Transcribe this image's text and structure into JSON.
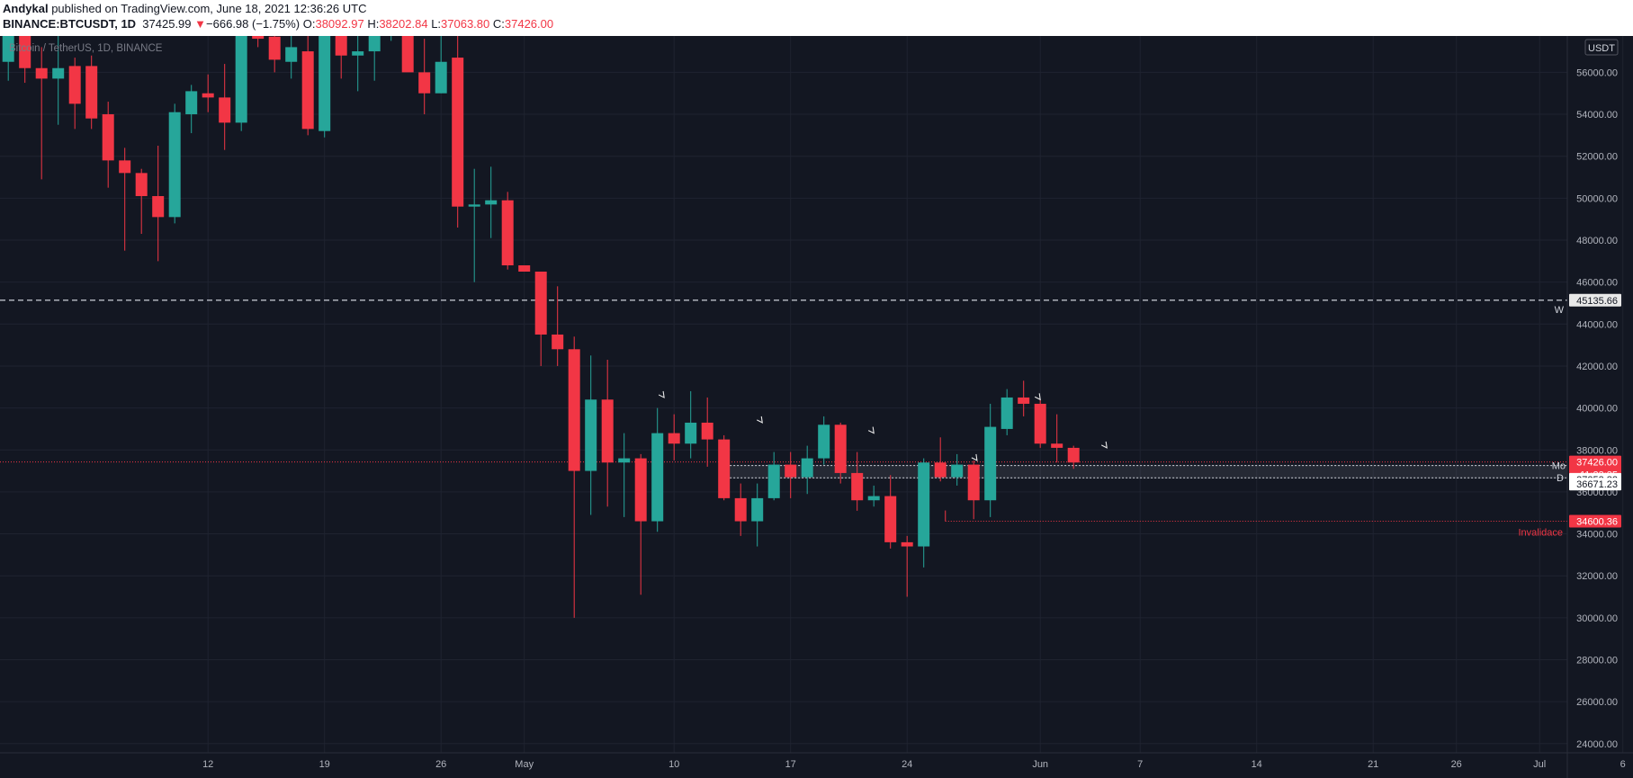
{
  "header": {
    "author": "Andykal",
    "published": " published on TradingView.com, June 18, 2021 12:36:26 UTC",
    "symbol": "BINANCE:BTCUSDT, 1D",
    "last": "37425.99",
    "change_arrow": "▼",
    "change": "−666.98 (−1.75%)",
    "o_label": "O:",
    "o_value": "38092.97",
    "h_label": "H:",
    "h_value": "38202.84",
    "l_label": "L:",
    "l_value": "37063.80",
    "c_label": "C:",
    "c_value": "37426.00"
  },
  "colors": {
    "background": "#131722",
    "up": "#26a69a",
    "down": "#f23645",
    "text": "#d1d4dc",
    "grid": "#1f2330"
  },
  "chart_data": {
    "type": "candlestick",
    "title": "Bitcoin / TetherUS, 1D, BINANCE",
    "currency": "USDT",
    "ylim": [
      23500,
      58000
    ],
    "y_ticks": [
      24000,
      26000,
      28000,
      30000,
      32000,
      34000,
      36000,
      38000,
      40000,
      42000,
      44000,
      46000,
      48000,
      50000,
      52000,
      54000,
      56000
    ],
    "x_ticks": [
      {
        "day": 12,
        "label": "12"
      },
      {
        "day": 19,
        "label": "19"
      },
      {
        "day": 26,
        "label": "26"
      },
      {
        "day": 31,
        "label": "May"
      },
      {
        "day": 40,
        "label": "10"
      },
      {
        "day": 47,
        "label": "17"
      },
      {
        "day": 54,
        "label": "24"
      },
      {
        "day": 62,
        "label": "Jun"
      },
      {
        "day": 68,
        "label": "7"
      },
      {
        "day": 75,
        "label": "14"
      },
      {
        "day": 82,
        "label": "21"
      },
      {
        "day": 87,
        "label": "26"
      },
      {
        "day": 92,
        "label": "Jul"
      },
      {
        "day": 97,
        "label": "6"
      }
    ],
    "candles": [
      {
        "o": 56500,
        "h": 58000,
        "l": 55600,
        "c": 58000
      },
      {
        "o": 58000,
        "h": 58500,
        "l": 55500,
        "c": 56200
      },
      {
        "o": 56200,
        "h": 57200,
        "l": 50900,
        "c": 55700
      },
      {
        "o": 55700,
        "h": 57800,
        "l": 53500,
        "c": 56200
      },
      {
        "o": 56300,
        "h": 56700,
        "l": 53300,
        "c": 54500
      },
      {
        "o": 56300,
        "h": 56800,
        "l": 53300,
        "c": 53800
      },
      {
        "o": 54000,
        "h": 54600,
        "l": 50500,
        "c": 51800
      },
      {
        "o": 51800,
        "h": 52400,
        "l": 47500,
        "c": 51200
      },
      {
        "o": 51200,
        "h": 51400,
        "l": 48300,
        "c": 50100
      },
      {
        "o": 50100,
        "h": 52500,
        "l": 47000,
        "c": 49100
      },
      {
        "o": 49100,
        "h": 54500,
        "l": 48800,
        "c": 54100
      },
      {
        "o": 54000,
        "h": 55400,
        "l": 53100,
        "c": 55100
      },
      {
        "o": 55000,
        "h": 55900,
        "l": 54100,
        "c": 54800
      },
      {
        "o": 54800,
        "h": 56400,
        "l": 52300,
        "c": 53600
      },
      {
        "o": 53600,
        "h": 58600,
        "l": 53200,
        "c": 57900
      },
      {
        "o": 57800,
        "h": 58400,
        "l": 57200,
        "c": 57600
      },
      {
        "o": 57700,
        "h": 59000,
        "l": 56000,
        "c": 56600
      },
      {
        "o": 56500,
        "h": 58400,
        "l": 55700,
        "c": 57200
      },
      {
        "o": 57000,
        "h": 58200,
        "l": 53000,
        "c": 53300
      },
      {
        "o": 53200,
        "h": 58600,
        "l": 52900,
        "c": 58300
      },
      {
        "o": 58000,
        "h": 59600,
        "l": 55700,
        "c": 56800
      },
      {
        "o": 56800,
        "h": 58200,
        "l": 55100,
        "c": 57000
      },
      {
        "o": 57000,
        "h": 58900,
        "l": 55600,
        "c": 58500
      },
      {
        "o": 58400,
        "h": 59600,
        "l": 57500,
        "c": 59800
      },
      {
        "o": 58500,
        "h": 59200,
        "l": 56200,
        "c": 56000
      },
      {
        "o": 56000,
        "h": 57600,
        "l": 54000,
        "c": 55000
      },
      {
        "o": 55000,
        "h": 58000,
        "l": 55000,
        "c": 56500
      },
      {
        "o": 56700,
        "h": 57800,
        "l": 48600,
        "c": 49600
      },
      {
        "o": 49600,
        "h": 51400,
        "l": 46000,
        "c": 49700
      },
      {
        "o": 49700,
        "h": 51500,
        "l": 48100,
        "c": 49900
      },
      {
        "o": 49900,
        "h": 50300,
        "l": 46600,
        "c": 46800
      },
      {
        "o": 46800,
        "h": 46800,
        "l": 46500,
        "c": 46500
      },
      {
        "o": 46500,
        "h": 46400,
        "l": 42000,
        "c": 43500
      },
      {
        "o": 43500,
        "h": 45800,
        "l": 42000,
        "c": 42800
      },
      {
        "o": 42800,
        "h": 43400,
        "l": 30000,
        "c": 37000
      },
      {
        "o": 37000,
        "h": 42500,
        "l": 34900,
        "c": 40400
      },
      {
        "o": 40400,
        "h": 42300,
        "l": 35300,
        "c": 37400
      },
      {
        "o": 37400,
        "h": 38800,
        "l": 34800,
        "c": 37600
      },
      {
        "o": 37600,
        "h": 37800,
        "l": 31100,
        "c": 34600
      },
      {
        "o": 34600,
        "h": 40000,
        "l": 34100,
        "c": 38800
      },
      {
        "o": 38800,
        "h": 39700,
        "l": 37500,
        "c": 38300
      },
      {
        "o": 38300,
        "h": 40800,
        "l": 37600,
        "c": 39300
      },
      {
        "o": 39300,
        "h": 40500,
        "l": 37200,
        "c": 38500
      },
      {
        "o": 38500,
        "h": 38700,
        "l": 35600,
        "c": 35700
      },
      {
        "o": 35700,
        "h": 36400,
        "l": 33900,
        "c": 34600
      },
      {
        "o": 34600,
        "h": 36400,
        "l": 33400,
        "c": 35700
      },
      {
        "o": 35700,
        "h": 37900,
        "l": 35600,
        "c": 37300
      },
      {
        "o": 37300,
        "h": 37900,
        "l": 35700,
        "c": 36700
      },
      {
        "o": 36700,
        "h": 38200,
        "l": 35900,
        "c": 37600
      },
      {
        "o": 37600,
        "h": 39600,
        "l": 37300,
        "c": 39200
      },
      {
        "o": 39200,
        "h": 39300,
        "l": 36400,
        "c": 36900
      },
      {
        "o": 36900,
        "h": 37900,
        "l": 35100,
        "c": 35600
      },
      {
        "o": 35600,
        "h": 36300,
        "l": 35300,
        "c": 35800
      },
      {
        "o": 35800,
        "h": 36800,
        "l": 33300,
        "c": 33600
      },
      {
        "o": 33600,
        "h": 33900,
        "l": 31000,
        "c": 33400
      },
      {
        "o": 33400,
        "h": 37600,
        "l": 32400,
        "c": 37400
      },
      {
        "o": 37400,
        "h": 38600,
        "l": 36500,
        "c": 36700
      },
      {
        "o": 36700,
        "h": 37800,
        "l": 36300,
        "c": 37300
      },
      {
        "o": 37300,
        "h": 37500,
        "l": 34700,
        "c": 35600
      },
      {
        "o": 35600,
        "h": 40200,
        "l": 34800,
        "c": 39100
      },
      {
        "o": 39000,
        "h": 40900,
        "l": 38700,
        "c": 40500
      },
      {
        "o": 40500,
        "h": 41300,
        "l": 39600,
        "c": 40200
      },
      {
        "o": 40200,
        "h": 40400,
        "l": 38100,
        "c": 38300
      },
      {
        "o": 38300,
        "h": 39700,
        "l": 37400,
        "c": 38100
      },
      {
        "o": 38100,
        "h": 38200,
        "l": 37100,
        "c": 37400
      }
    ],
    "price_levels": [
      {
        "label": "45135.66",
        "value": 45135.66,
        "tag": "W"
      },
      {
        "label": "37426.00",
        "value": 37426,
        "sub": "11:23:35"
      },
      {
        "label": "37253.82",
        "value": 37253.82,
        "tag": "Mo"
      },
      {
        "label": "36671.23",
        "value": 36671.23,
        "tag": "D"
      },
      {
        "label": "34600.36",
        "value": 34600.36,
        "note": "Invalidace"
      }
    ]
  }
}
